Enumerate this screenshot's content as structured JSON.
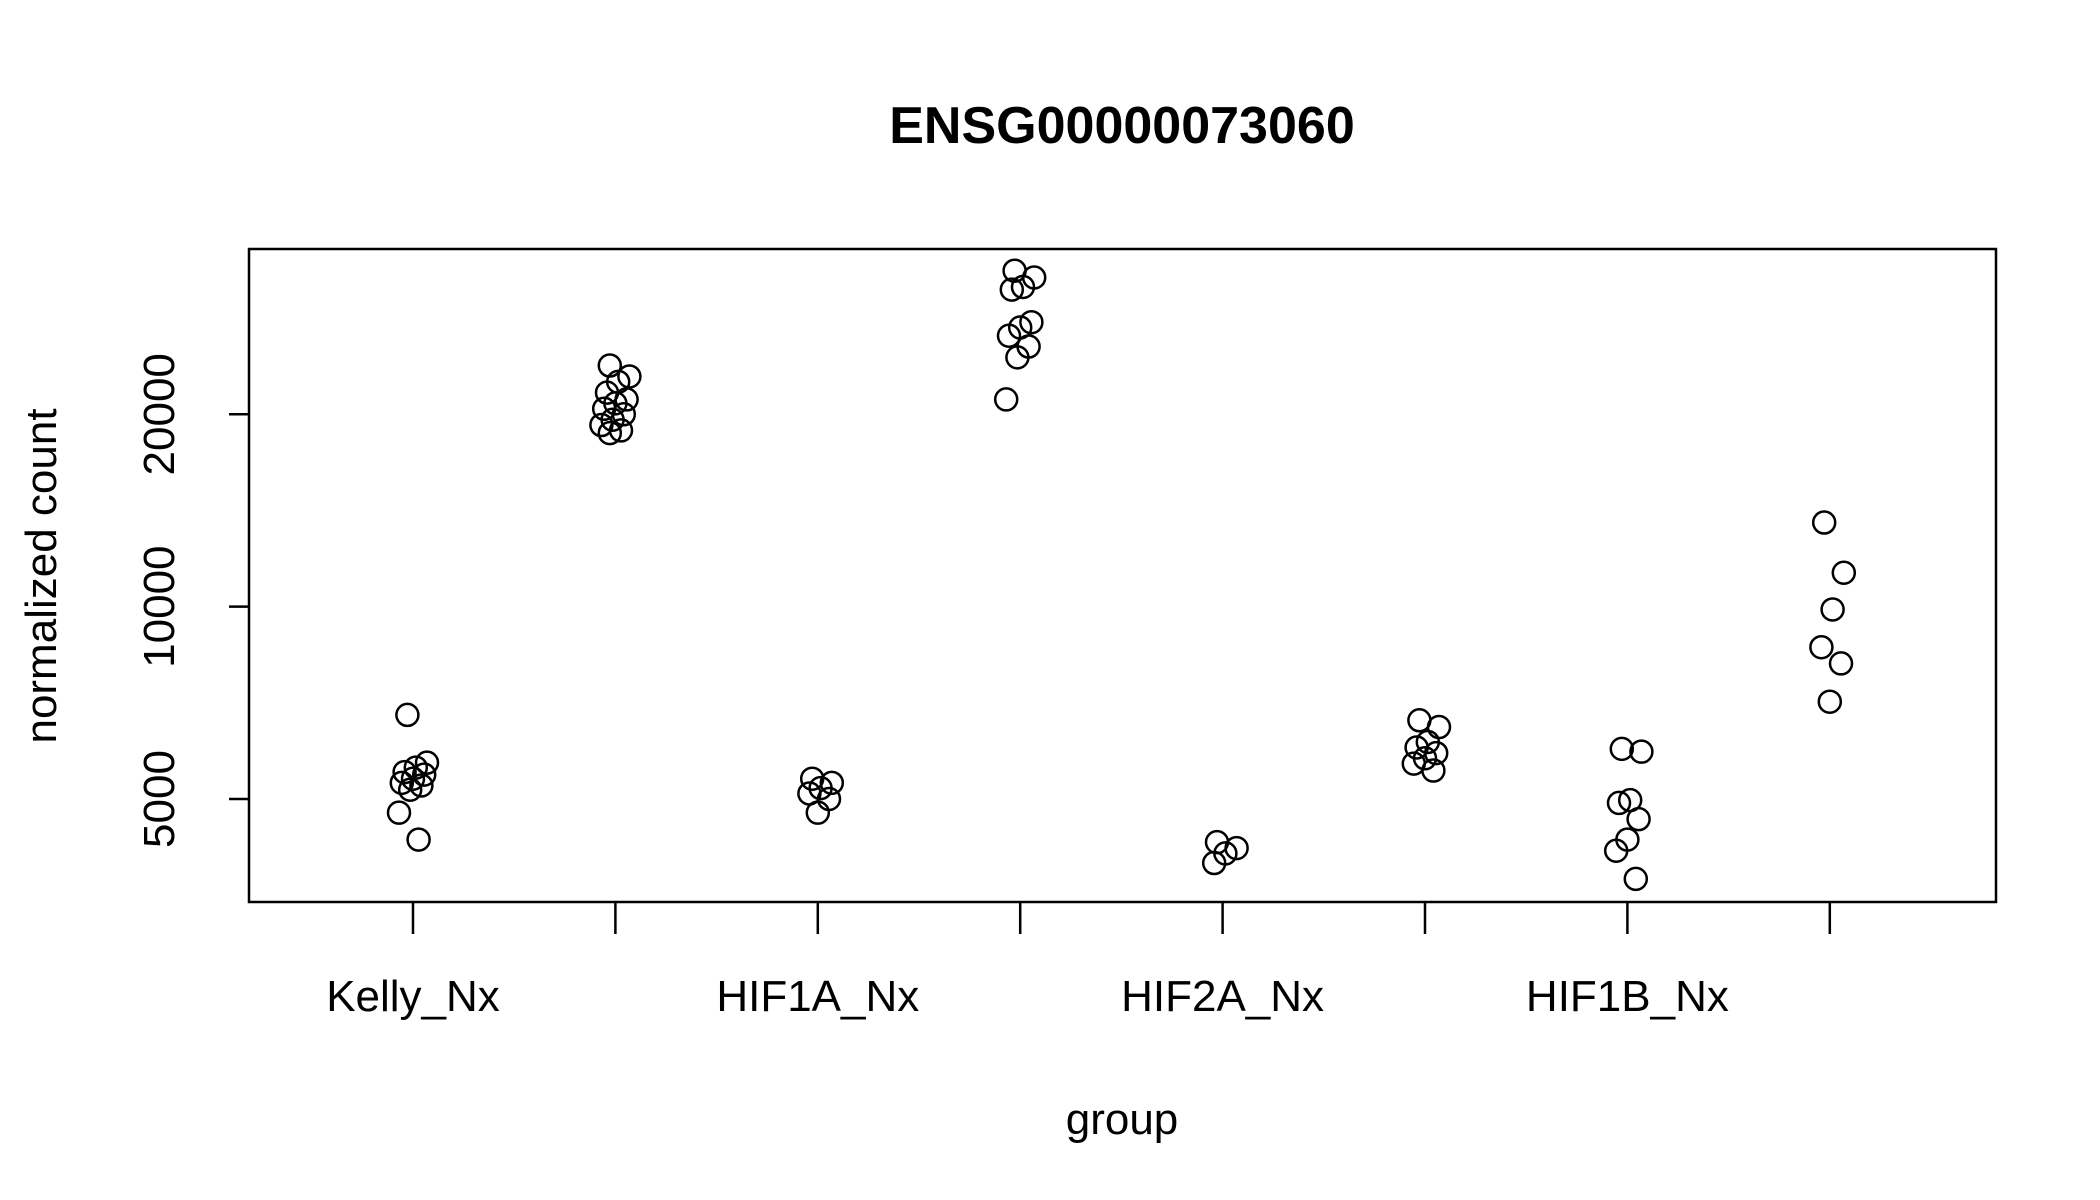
{
  "chart_data": {
    "type": "strip",
    "title": "ENSG00000073060",
    "xlabel": "group",
    "ylabel": "normalized count",
    "log_y": true,
    "color": "#000000",
    "categories": [
      "Kelly_Nx",
      null,
      "HIF1A_Nx",
      null,
      "HIF2A_Nx",
      null,
      "HIF1B_Nx",
      null
    ],
    "values": [
      [
        6770,
        5700,
        5600,
        5510,
        5460,
        5380,
        5300,
        5250,
        5170,
        4760,
        4320
      ],
      [
        23840,
        22920,
        22480,
        21620,
        21100,
        20800,
        20400,
        20000,
        19610,
        19240,
        18870,
        18690
      ],
      [
        5380,
        5300,
        5200,
        5100,
        5000,
        4760
      ],
      [
        33550,
        32740,
        31640,
        31340,
        27870,
        27340,
        26540,
        25530,
        24550,
        21100
      ],
      [
        4280,
        4190,
        4110,
        3970
      ],
      [
        6640,
        6480,
        6140,
        6020,
        5900,
        5790,
        5680,
        5540
      ],
      [
        5990,
        5930,
        4980,
        4930,
        4650,
        4320,
        4150,
        3750
      ],
      [
        13540,
        11300,
        9900,
        8640,
        8150,
        7100
      ]
    ],
    "ylim": [
      3450,
      36280
    ],
    "yticks": [
      5000,
      10000,
      20000
    ]
  }
}
